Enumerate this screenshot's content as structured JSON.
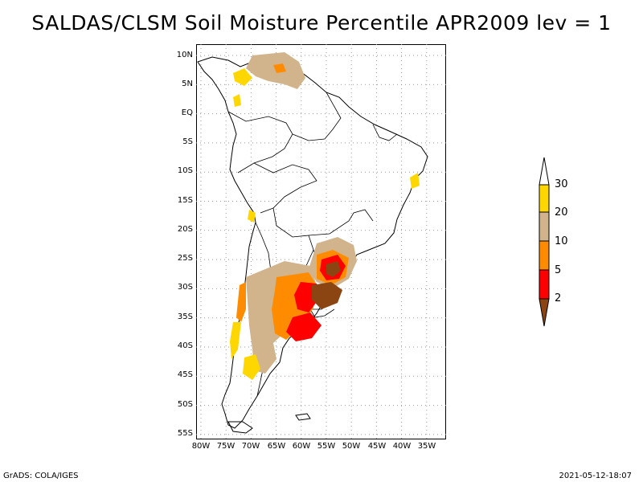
{
  "title": "SALDAS/CLSM Soil Moisture Percentile APR2009 lev = 1",
  "map": {
    "lat_labels": [
      "10N",
      "5N",
      "EQ",
      "5S",
      "10S",
      "15S",
      "20S",
      "25S",
      "30S",
      "35S",
      "40S",
      "45S",
      "50S",
      "55S"
    ],
    "lon_labels": [
      "80W",
      "75W",
      "70W",
      "65W",
      "60W",
      "55W",
      "50W",
      "45W",
      "40W",
      "35W"
    ],
    "grid": true,
    "region": "South America"
  },
  "colorbar": {
    "levels": [
      "2",
      "5",
      "10",
      "20",
      "30"
    ],
    "colors": [
      "#8b4513",
      "#ff0000",
      "#ff8c00",
      "#d2b48c",
      "#ffd700",
      "#ffffff"
    ]
  },
  "footer": {
    "left": "GrADS: COLA/IGES",
    "right": "2021-05-12-18:07"
  }
}
